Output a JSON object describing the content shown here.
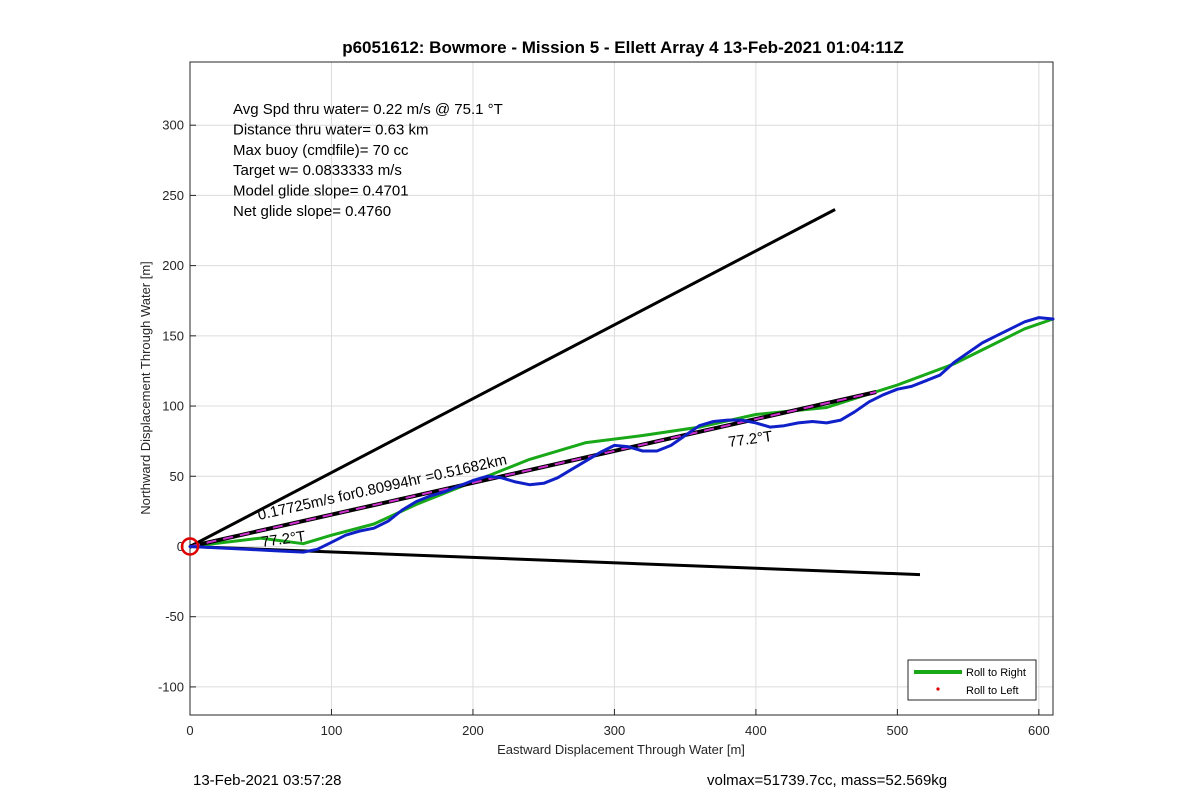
{
  "chart_data": {
    "type": "line",
    "title": "p6051612: Bowmore - Mission 5 - Ellett Array 4 13-Feb-2021 01:04:11Z",
    "xlabel": "Eastward Displacement Through Water [m]",
    "ylabel": "Northward Displacement Through Water [m]",
    "xlim": [
      0,
      610
    ],
    "ylim": [
      -120,
      345
    ],
    "xticks": [
      0,
      100,
      200,
      300,
      400,
      500,
      600
    ],
    "yticks": [
      -100,
      -50,
      0,
      50,
      100,
      150,
      200,
      250,
      300
    ],
    "grid": true,
    "legend": {
      "placement": "bottom-right",
      "entries": [
        "Roll to Right",
        "Roll to Left"
      ]
    },
    "colors": {
      "track": "#1020c8",
      "roll_right": "#18a818",
      "roll_left": "#e00000",
      "fit_line": "#000000",
      "fit_dash": "#d030d0",
      "start_marker": "#e00000",
      "bound_lines": "#000000"
    },
    "info_lines": [
      "Avg Spd thru water=  0.22 m/s @  75.1 °T",
      "Distance thru water=  0.63 km",
      "Max buoy (cmdfile)= 70 cc",
      "Target w= 0.0833333 m/s",
      "Model glide slope= 0.4701",
      "Net glide slope= 0.4760"
    ],
    "annotations": {
      "speed_label": "0.17725m/s for0.80994hr =0.51682km",
      "heading_label_start": "77.2°T",
      "heading_label_mid": "77.2°T"
    },
    "series": [
      {
        "name": "Roll to Right",
        "x": [
          0,
          50,
          80,
          100,
          130,
          160,
          200,
          240,
          280,
          320,
          360,
          400,
          450,
          500,
          540,
          570,
          590,
          610
        ],
        "y": [
          0,
          6,
          2,
          8,
          16,
          30,
          46,
          62,
          74,
          79,
          85,
          94,
          99,
          115,
          130,
          145,
          155,
          162
        ]
      },
      {
        "name": "",
        "x": [
          0,
          20,
          40,
          60,
          80,
          90,
          100,
          110,
          120,
          130,
          140,
          150,
          160,
          170,
          180,
          190,
          200,
          210,
          220,
          230,
          240,
          250,
          260,
          270,
          280,
          290,
          300,
          310,
          320,
          330,
          340,
          350,
          360,
          370,
          380,
          390,
          400,
          410,
          420,
          430,
          440,
          450,
          460,
          470,
          480,
          490,
          500,
          510,
          520,
          530,
          540,
          550,
          560,
          570,
          580,
          590,
          600,
          610
        ],
        "y": [
          0,
          -1,
          -2,
          -3,
          -4,
          -2,
          3,
          8,
          11,
          13,
          18,
          26,
          32,
          36,
          39,
          43,
          47,
          50,
          49,
          46,
          44,
          45,
          49,
          55,
          61,
          67,
          72,
          71,
          68,
          68,
          72,
          79,
          86,
          89,
          90,
          90,
          88,
          85,
          86,
          88,
          89,
          88,
          90,
          96,
          103,
          108,
          112,
          114,
          118,
          122,
          131,
          138,
          145,
          150,
          155,
          160,
          163,
          162
        ]
      },
      {
        "name": "",
        "x": [
          0,
          485
        ],
        "y": [
          0,
          110
        ]
      }
    ],
    "reference_lines": [
      {
        "x": [
          0,
          456
        ],
        "y": [
          0,
          240
        ]
      },
      {
        "x": [
          0,
          516
        ],
        "y": [
          0,
          -20
        ]
      }
    ],
    "start_marker": {
      "x": 0,
      "y": 0
    }
  },
  "footer": {
    "timestamp": "13-Feb-2021 03:57:28",
    "stats": "volmax=51739.7cc, mass=52.569kg"
  }
}
